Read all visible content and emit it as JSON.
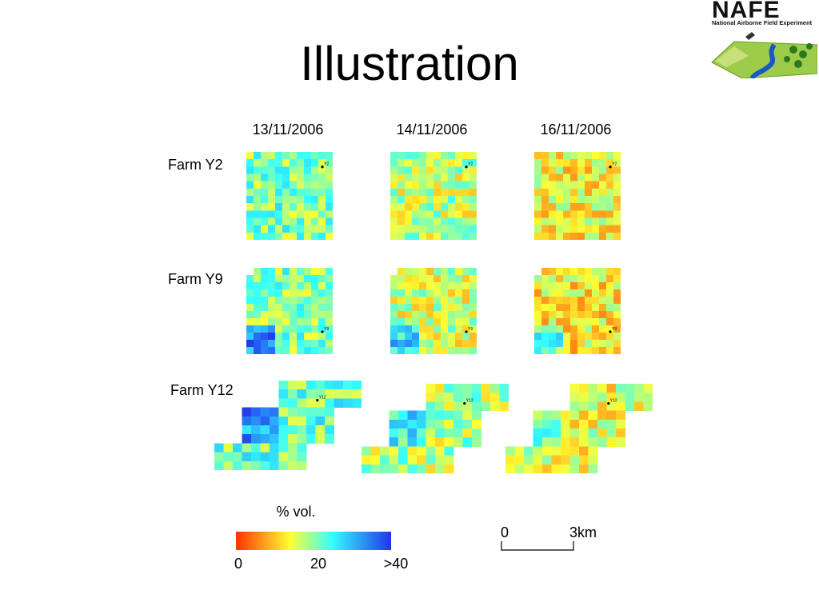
{
  "slide": {
    "title": "Illustration"
  },
  "logo": {
    "name": "NAFE",
    "subtitle": "National Airborne Field Experiment",
    "colors": {
      "field": "#7fbf3f",
      "river": "#1e56c8",
      "trees": "#2d7a1e"
    }
  },
  "chart_data": {
    "type": "heatmap",
    "description_units": "% vol.",
    "columns": [
      "13/11/2006",
      "14/11/2006",
      "16/11/2006"
    ],
    "rows": [
      "Farm Y2",
      "Farm Y9",
      "Farm Y12"
    ],
    "station_labels": [
      "Y2",
      "Y9",
      "Y12"
    ],
    "colorbar": {
      "label": "% vol.",
      "ticks": [
        "0",
        "20",
        ">40"
      ],
      "range": [
        0,
        40
      ],
      "colors": [
        "#ff3300",
        "#ffff33",
        "#33ffff",
        "#2233ee"
      ]
    },
    "scale_bar": {
      "start": "0",
      "end": "3km"
    },
    "legend_placement": "bottom"
  }
}
